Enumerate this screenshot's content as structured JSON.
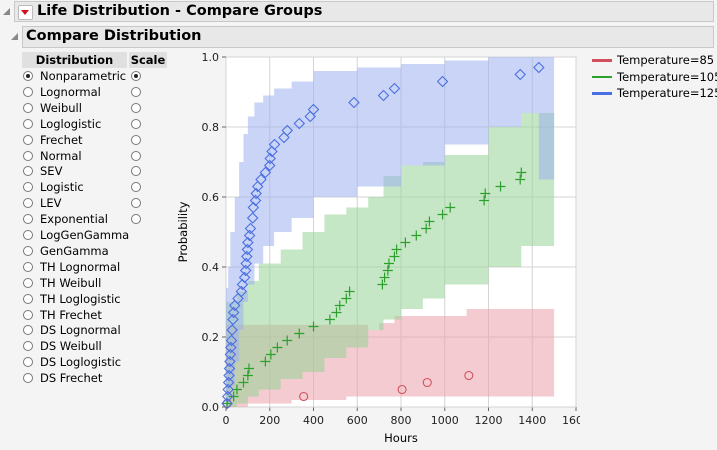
{
  "header": {
    "title": "Life Distribution - Compare Groups",
    "subtitle": "Compare Distribution"
  },
  "table": {
    "col_distribution": "Distribution",
    "col_scale": "Scale",
    "rows": [
      {
        "label": "Nonparametric",
        "selected": true,
        "scale": true,
        "scale_selected": true
      },
      {
        "label": "Lognormal",
        "selected": false,
        "scale": true,
        "scale_selected": false
      },
      {
        "label": "Weibull",
        "selected": false,
        "scale": true,
        "scale_selected": false
      },
      {
        "label": "Loglogistic",
        "selected": false,
        "scale": true,
        "scale_selected": false
      },
      {
        "label": "Frechet",
        "selected": false,
        "scale": true,
        "scale_selected": false
      },
      {
        "label": "Normal",
        "selected": false,
        "scale": true,
        "scale_selected": false
      },
      {
        "label": "SEV",
        "selected": false,
        "scale": true,
        "scale_selected": false
      },
      {
        "label": "Logistic",
        "selected": false,
        "scale": true,
        "scale_selected": false
      },
      {
        "label": "LEV",
        "selected": false,
        "scale": true,
        "scale_selected": false
      },
      {
        "label": "Exponential",
        "selected": false,
        "scale": true,
        "scale_selected": false
      },
      {
        "label": "LogGenGamma",
        "selected": false,
        "scale": false
      },
      {
        "label": "GenGamma",
        "selected": false,
        "scale": false
      },
      {
        "label": "TH Lognormal",
        "selected": false,
        "scale": false
      },
      {
        "label": "TH Weibull",
        "selected": false,
        "scale": false
      },
      {
        "label": "TH Loglogistic",
        "selected": false,
        "scale": false
      },
      {
        "label": "TH Frechet",
        "selected": false,
        "scale": false
      },
      {
        "label": "DS Lognormal",
        "selected": false,
        "scale": false
      },
      {
        "label": "DS Weibull",
        "selected": false,
        "scale": false
      },
      {
        "label": "DS Loglogistic",
        "selected": false,
        "scale": false
      },
      {
        "label": "DS Frechet",
        "selected": false,
        "scale": false
      }
    ]
  },
  "chart_data": {
    "type": "scatter",
    "xlabel": "Hours",
    "ylabel": "Probability",
    "xlim": [
      0,
      1600
    ],
    "ylim": [
      0,
      1
    ],
    "xticks": [
      "0",
      "200",
      "400",
      "600",
      "800",
      "1000",
      "1200",
      "1400",
      "1600"
    ],
    "yticks": [
      "0.0",
      "0.2",
      "0.4",
      "0.6",
      "0.8",
      "1.0"
    ],
    "grid": true,
    "legend_placement": "right",
    "series": [
      {
        "name": "Temperature=85",
        "color": "#d0505c",
        "band_color": "#eaa0aa",
        "marker": "circle",
        "points": [
          [
            5,
            0.01
          ],
          [
            355,
            0.03
          ],
          [
            805,
            0.05
          ],
          [
            920,
            0.07
          ],
          [
            1110,
            0.09
          ]
        ],
        "band": [
          [
            0,
            0,
            0.235
          ],
          [
            100,
            0.01,
            0.235
          ],
          [
            300,
            0.02,
            0.235
          ],
          [
            550,
            0.03,
            0.235
          ],
          [
            650,
            0.03,
            0.22
          ],
          [
            700,
            0.03,
            0.24
          ],
          [
            770,
            0.03,
            0.26
          ],
          [
            1100,
            0.03,
            0.28
          ],
          [
            1500,
            0.03,
            0.28
          ]
        ]
      },
      {
        "name": "Temperature=105",
        "color": "#2ca02c",
        "band_color": "#98d498",
        "marker": "plus",
        "points": [
          [
            5,
            0.01
          ],
          [
            35,
            0.03
          ],
          [
            50,
            0.05
          ],
          [
            80,
            0.07
          ],
          [
            100,
            0.09
          ],
          [
            105,
            0.11
          ],
          [
            180,
            0.13
          ],
          [
            205,
            0.15
          ],
          [
            235,
            0.17
          ],
          [
            280,
            0.19
          ],
          [
            335,
            0.21
          ],
          [
            400,
            0.23
          ],
          [
            475,
            0.25
          ],
          [
            505,
            0.27
          ],
          [
            520,
            0.29
          ],
          [
            550,
            0.31
          ],
          [
            565,
            0.33
          ],
          [
            715,
            0.35
          ],
          [
            725,
            0.37
          ],
          [
            740,
            0.39
          ],
          [
            745,
            0.41
          ],
          [
            770,
            0.43
          ],
          [
            780,
            0.45
          ],
          [
            820,
            0.47
          ],
          [
            870,
            0.49
          ],
          [
            915,
            0.51
          ],
          [
            930,
            0.53
          ],
          [
            990,
            0.55
          ],
          [
            1025,
            0.57
          ],
          [
            1180,
            0.59
          ],
          [
            1185,
            0.61
          ],
          [
            1255,
            0.63
          ],
          [
            1345,
            0.65
          ],
          [
            1350,
            0.67
          ]
        ],
        "band": [
          [
            0,
            0,
            0.3
          ],
          [
            50,
            0.01,
            0.33
          ],
          [
            100,
            0.03,
            0.36
          ],
          [
            150,
            0.05,
            0.41
          ],
          [
            250,
            0.08,
            0.45
          ],
          [
            350,
            0.1,
            0.5
          ],
          [
            450,
            0.14,
            0.55
          ],
          [
            550,
            0.17,
            0.57
          ],
          [
            650,
            0.22,
            0.6
          ],
          [
            720,
            0.25,
            0.66
          ],
          [
            800,
            0.28,
            0.69
          ],
          [
            900,
            0.31,
            0.7
          ],
          [
            1000,
            0.35,
            0.72
          ],
          [
            1200,
            0.4,
            0.8
          ],
          [
            1350,
            0.46,
            0.84
          ],
          [
            1500,
            0.46,
            0.84
          ]
        ]
      },
      {
        "name": "Temperature=125",
        "color": "#4a6fe0",
        "band_color": "#9cb0ee",
        "marker": "diamond",
        "points": [
          [
            5,
            0.01
          ],
          [
            8,
            0.03
          ],
          [
            10,
            0.05
          ],
          [
            12,
            0.07
          ],
          [
            14,
            0.09
          ],
          [
            16,
            0.11
          ],
          [
            18,
            0.13
          ],
          [
            20,
            0.15
          ],
          [
            22,
            0.17
          ],
          [
            25,
            0.19
          ],
          [
            28,
            0.22
          ],
          [
            32,
            0.25
          ],
          [
            35,
            0.27
          ],
          [
            40,
            0.29
          ],
          [
            55,
            0.31
          ],
          [
            70,
            0.33
          ],
          [
            75,
            0.35
          ],
          [
            85,
            0.37
          ],
          [
            90,
            0.39
          ],
          [
            92,
            0.41
          ],
          [
            95,
            0.43
          ],
          [
            98,
            0.45
          ],
          [
            100,
            0.47
          ],
          [
            108,
            0.49
          ],
          [
            112,
            0.51
          ],
          [
            122,
            0.54
          ],
          [
            125,
            0.57
          ],
          [
            135,
            0.59
          ],
          [
            138,
            0.61
          ],
          [
            145,
            0.63
          ],
          [
            160,
            0.65
          ],
          [
            180,
            0.67
          ],
          [
            200,
            0.69
          ],
          [
            202,
            0.71
          ],
          [
            210,
            0.73
          ],
          [
            222,
            0.75
          ],
          [
            265,
            0.77
          ],
          [
            280,
            0.79
          ],
          [
            335,
            0.81
          ],
          [
            385,
            0.83
          ],
          [
            400,
            0.85
          ],
          [
            585,
            0.87
          ],
          [
            720,
            0.89
          ],
          [
            770,
            0.91
          ],
          [
            990,
            0.93
          ],
          [
            1345,
            0.95
          ],
          [
            1430,
            0.97
          ]
        ],
        "band": [
          [
            0,
            0,
            0.34
          ],
          [
            10,
            0.02,
            0.4
          ],
          [
            20,
            0.06,
            0.5
          ],
          [
            40,
            0.13,
            0.6
          ],
          [
            60,
            0.22,
            0.7
          ],
          [
            80,
            0.3,
            0.78
          ],
          [
            100,
            0.35,
            0.83
          ],
          [
            130,
            0.41,
            0.87
          ],
          [
            170,
            0.46,
            0.89
          ],
          [
            220,
            0.5,
            0.91
          ],
          [
            300,
            0.54,
            0.93
          ],
          [
            400,
            0.6,
            0.96
          ],
          [
            600,
            0.63,
            0.97
          ],
          [
            800,
            0.69,
            0.98
          ],
          [
            1000,
            0.75,
            0.99
          ],
          [
            1200,
            0.8,
            1.0
          ],
          [
            1350,
            0.84,
            1.0
          ],
          [
            1430,
            0.65,
            1.0
          ],
          [
            1500,
            0.65,
            1.0
          ]
        ]
      }
    ]
  }
}
